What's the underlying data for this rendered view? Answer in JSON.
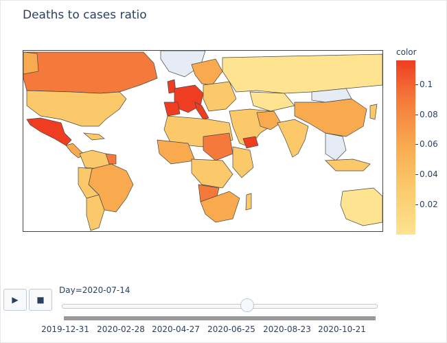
{
  "page": {
    "title": "Deaths to cases ratio"
  },
  "chart_data": {
    "type": "choropleth",
    "title": "Deaths to cases ratio",
    "colorbar": {
      "title": "color",
      "ticks": [
        "0.1",
        "0.08",
        "0.06",
        "0.04",
        "0.02"
      ],
      "colors": [
        "#ef3d22",
        "#f4793a",
        "#f9a94e",
        "#fbc86a",
        "#fee391"
      ]
    },
    "no_data_color": "#e5ecf6",
    "border_color": "#444444"
  },
  "slider": {
    "current_label": "Day=2020-07-14",
    "current_value": "2020-07-14",
    "position_fraction": 0.59,
    "tick_labels": [
      "2019-12-31",
      "2020-02-28",
      "2020-04-27",
      "2020-06-25",
      "2020-08-23",
      "2020-10-21"
    ]
  },
  "controls": {
    "play_symbol": "▶",
    "stop_symbol": "■"
  }
}
